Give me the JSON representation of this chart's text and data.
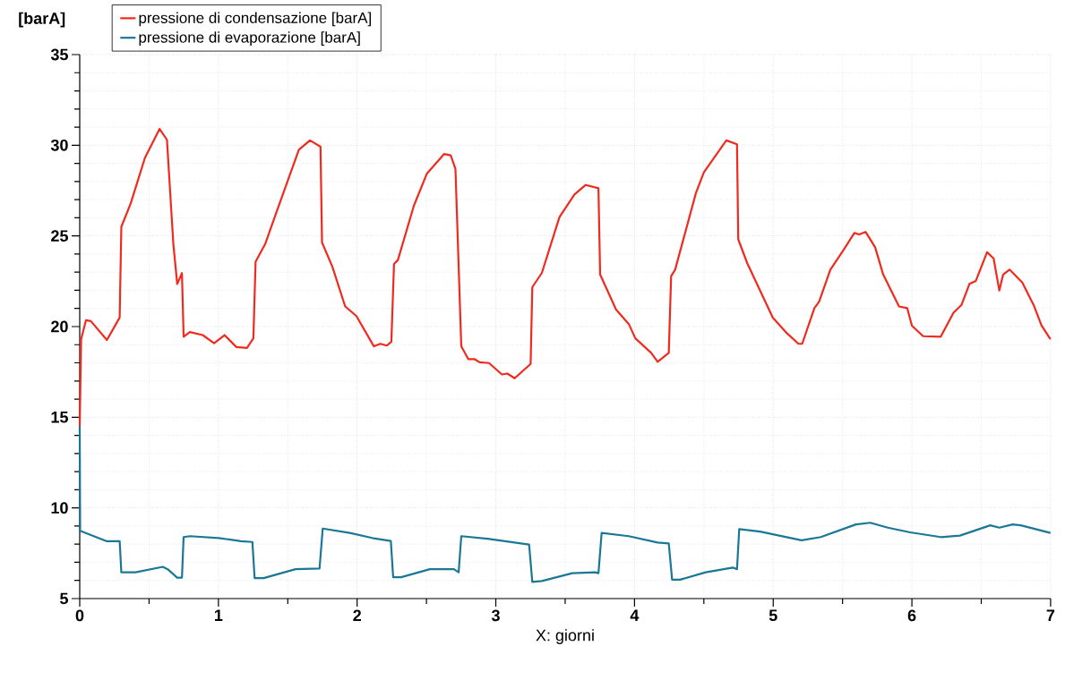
{
  "chart_data": {
    "type": "line",
    "xlabel": "X: giorni",
    "ylabel": "[barA]",
    "xlim": [
      0,
      7
    ],
    "ylim": [
      5,
      35
    ],
    "xticks": [
      0,
      1,
      2,
      3,
      4,
      5,
      6,
      7
    ],
    "yticks": [
      5,
      10,
      15,
      20,
      25,
      30,
      35
    ],
    "grid": true,
    "legend": "top left",
    "marker": "none",
    "line_style": "solid",
    "series": [
      {
        "name": "pressione di condensazione [barA]",
        "color": "#f02a1e",
        "x": [
          0,
          0.01,
          0.045,
          0.08,
          0.196,
          0.288,
          0.3,
          0.368,
          0.47,
          0.576,
          0.629,
          0.675,
          0.703,
          0.737,
          0.749,
          0.794,
          0.887,
          0.969,
          1.044,
          1.13,
          1.206,
          1.252,
          1.268,
          1.337,
          1.418,
          1.58,
          1.66,
          1.736,
          1.747,
          1.821,
          1.914,
          1.995,
          2.121,
          2.167,
          2.214,
          2.247,
          2.266,
          2.294,
          2.409,
          2.502,
          2.628,
          2.675,
          2.709,
          2.751,
          2.802,
          2.848,
          2.883,
          2.951,
          3.044,
          3.083,
          3.136,
          3.251,
          3.263,
          3.332,
          3.459,
          3.567,
          3.648,
          3.74,
          3.752,
          3.867,
          3.959,
          4.006,
          4.12,
          4.167,
          4.247,
          4.264,
          4.293,
          4.443,
          4.5,
          4.662,
          4.739,
          4.748,
          4.813,
          4.997,
          5.09,
          5.182,
          5.209,
          5.297,
          5.331,
          5.412,
          5.504,
          5.585,
          5.62,
          5.666,
          5.735,
          5.793,
          5.907,
          5.966,
          6.0,
          6.081,
          6.208,
          6.3,
          6.358,
          6.415,
          6.461,
          6.542,
          6.589,
          6.63,
          6.658,
          6.704,
          6.796,
          6.877,
          6.935,
          6.999
        ],
        "values": [
          14.5,
          19.3,
          20.35,
          20.3,
          19.26,
          20.5,
          25.5,
          26.8,
          29.3,
          30.9,
          30.3,
          24.55,
          22.35,
          22.95,
          19.44,
          19.7,
          19.53,
          19.08,
          19.53,
          18.87,
          18.82,
          19.35,
          23.58,
          24.55,
          26.3,
          29.75,
          30.27,
          29.92,
          24.64,
          23.31,
          21.11,
          20.58,
          18.91,
          19.05,
          18.95,
          19.17,
          23.45,
          23.67,
          26.66,
          28.42,
          29.52,
          29.44,
          28.69,
          18.91,
          18.2,
          18.2,
          18.03,
          17.99,
          17.36,
          17.41,
          17.15,
          17.94,
          22.17,
          22.96,
          26.04,
          27.28,
          27.81,
          27.63,
          22.87,
          20.94,
          20.14,
          19.35,
          18.55,
          18.06,
          18.55,
          22.78,
          23.14,
          27.37,
          28.51,
          30.27,
          30.05,
          24.81,
          23.49,
          20.49,
          19.7,
          19.05,
          19.05,
          21.02,
          21.38,
          23.14,
          24.19,
          25.16,
          25.08,
          25.22,
          24.37,
          22.87,
          21.11,
          21.02,
          20.05,
          19.47,
          19.44,
          20.76,
          21.2,
          22.35,
          22.52,
          24.1,
          23.76,
          21.99,
          22.87,
          23.14,
          22.43,
          21.2,
          20.05,
          19.3
        ]
      },
      {
        "name": "pressione di evaporazione [barA]",
        "color": "#1a7896",
        "x": [
          0,
          0.003,
          0.196,
          0.288,
          0.3,
          0.403,
          0.599,
          0.634,
          0.703,
          0.737,
          0.749,
          0.795,
          1.003,
          1.164,
          1.245,
          1.261,
          1.326,
          1.556,
          1.729,
          1.752,
          1.948,
          2.109,
          2.243,
          2.26,
          2.317,
          2.525,
          2.698,
          2.732,
          2.751,
          2.94,
          3.24,
          3.263,
          3.332,
          3.551,
          3.717,
          3.74,
          3.763,
          3.959,
          4.167,
          4.247,
          4.271,
          4.328,
          4.513,
          4.709,
          4.739,
          4.755,
          4.905,
          5.205,
          5.343,
          5.596,
          5.7,
          5.827,
          5.988,
          6.208,
          6.346,
          6.565,
          6.63,
          6.727,
          6.785,
          6.999
        ],
        "values": [
          14.5,
          8.74,
          8.16,
          8.16,
          6.45,
          6.45,
          6.75,
          6.62,
          6.15,
          6.15,
          8.39,
          8.44,
          8.34,
          8.16,
          8.12,
          6.13,
          6.13,
          6.62,
          6.66,
          8.86,
          8.62,
          8.34,
          8.18,
          6.18,
          6.18,
          6.62,
          6.62,
          6.45,
          8.44,
          8.3,
          7.98,
          5.92,
          5.97,
          6.4,
          6.45,
          6.4,
          8.62,
          8.44,
          8.09,
          8.04,
          6.04,
          6.04,
          6.45,
          6.71,
          6.62,
          8.83,
          8.69,
          8.21,
          8.39,
          9.09,
          9.18,
          8.91,
          8.65,
          8.39,
          8.47,
          9.04,
          8.91,
          9.09,
          9.04,
          8.62
        ]
      }
    ]
  }
}
